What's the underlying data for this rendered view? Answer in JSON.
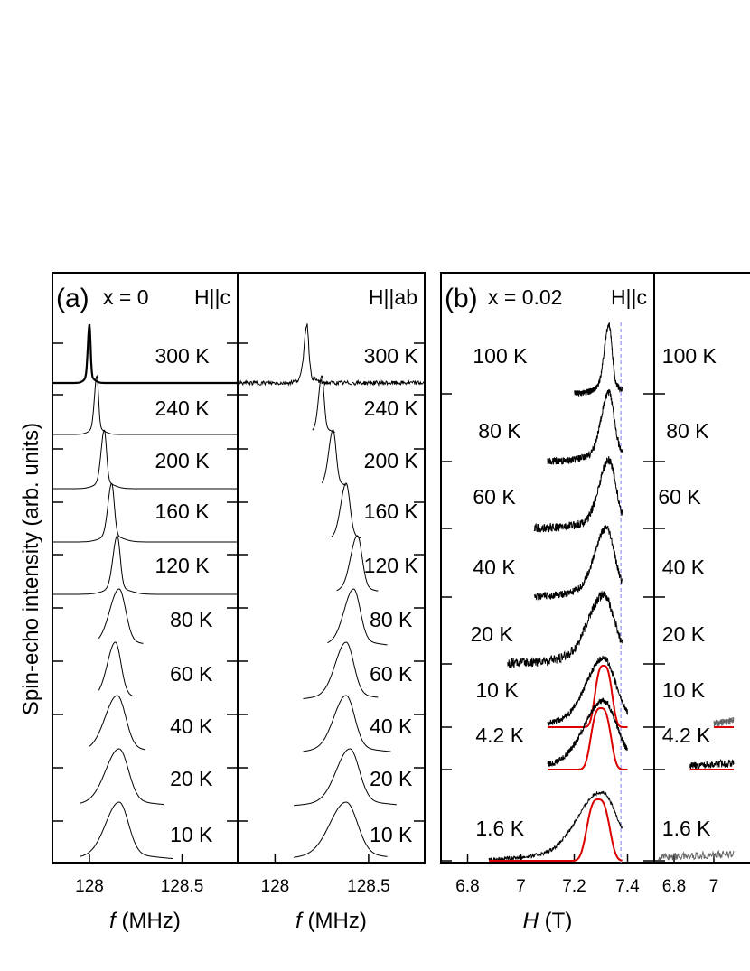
{
  "figure": {
    "ylabel": "Spin-echo intensity (arb. units)"
  },
  "chart_data": [
    {
      "type": "line",
      "panel": "a-left",
      "panel_label": "(a)",
      "composition": "x = 0",
      "field_orientation": "H||c",
      "xlabel_italic": "f",
      "xlabel_unit": "(MHz)",
      "xlim": [
        127.8,
        128.8
      ],
      "xticks": [
        128,
        128.5
      ],
      "xtick_labels": [
        "128",
        "128.5"
      ],
      "ylim": [
        0,
        11
      ],
      "series": [
        {
          "temperature": "300 K",
          "center": 128.0,
          "width": 0.006,
          "baseline": [
            127.8,
            128.8
          ],
          "noise": 0,
          "label_x": 128.5,
          "bold": true
        },
        {
          "temperature": "240 K",
          "center": 128.04,
          "width": 0.009,
          "baseline": [
            127.8,
            128.8
          ],
          "noise": 0,
          "label_x": 128.5
        },
        {
          "temperature": "200 K",
          "center": 128.08,
          "width": 0.012,
          "baseline": [
            127.8,
            128.8
          ],
          "noise": 0,
          "label_x": 128.5
        },
        {
          "temperature": "160 K",
          "center": 128.12,
          "width": 0.014,
          "baseline": [
            127.8,
            128.8
          ],
          "noise": 0,
          "label_x": 128.5
        },
        {
          "temperature": "120 K",
          "center": 128.15,
          "width": 0.016,
          "baseline": [
            127.8,
            128.8
          ],
          "noise": 0,
          "label_x": 128.5
        },
        {
          "temperature": "80 K",
          "center": 128.16,
          "width": 0.035,
          "baseline": [
            128.05,
            128.29
          ],
          "noise": 0,
          "label_x": 128.55
        },
        {
          "temperature": "60 K",
          "center": 128.14,
          "width": 0.03,
          "baseline": [
            128.05,
            128.23
          ],
          "noise": 0,
          "label_x": 128.55
        },
        {
          "temperature": "40 K",
          "center": 128.15,
          "width": 0.045,
          "baseline": [
            128.0,
            128.3
          ],
          "noise": 0,
          "label_x": 128.55
        },
        {
          "temperature": "20 K",
          "center": 128.16,
          "width": 0.05,
          "baseline": [
            127.95,
            128.4
          ],
          "noise": 0,
          "label_x": 128.55
        },
        {
          "temperature": "10 K",
          "center": 128.16,
          "width": 0.05,
          "baseline": [
            127.95,
            128.45
          ],
          "noise": 0,
          "label_x": 128.55
        }
      ]
    },
    {
      "type": "line",
      "panel": "a-right",
      "field_orientation": "H||ab",
      "xlabel_italic": "f",
      "xlabel_unit": "(MHz)",
      "xlim": [
        127.8,
        128.8
      ],
      "xticks": [
        128,
        128.5
      ],
      "xtick_labels": [
        "128",
        "128.5"
      ],
      "ylim": [
        0,
        11
      ],
      "series": [
        {
          "temperature": "300 K",
          "center": 128.17,
          "width": 0.01,
          "baseline": [
            127.8,
            128.8
          ],
          "noise": 0.04,
          "label_x": 128.62
        },
        {
          "temperature": "240 K",
          "center": 128.25,
          "width": 0.012,
          "baseline": [
            128.2,
            128.32
          ],
          "noise": 0,
          "label_x": 128.62
        },
        {
          "temperature": "200 K",
          "center": 128.31,
          "width": 0.016,
          "baseline": [
            128.25,
            128.38
          ],
          "noise": 0,
          "label_x": 128.62
        },
        {
          "temperature": "160 K",
          "center": 128.38,
          "width": 0.02,
          "baseline": [
            128.3,
            128.46
          ],
          "noise": 0,
          "label_x": 128.62
        },
        {
          "temperature": "120 K",
          "center": 128.44,
          "width": 0.025,
          "baseline": [
            128.33,
            128.55
          ],
          "noise": 0,
          "label_x": 128.62
        },
        {
          "temperature": "80 K",
          "center": 128.42,
          "width": 0.035,
          "baseline": [
            128.28,
            128.6
          ],
          "noise": 0,
          "label_x": 128.62
        },
        {
          "temperature": "60 K",
          "center": 128.38,
          "width": 0.04,
          "baseline": [
            128.15,
            128.55
          ],
          "noise": 0,
          "label_x": 128.62
        },
        {
          "temperature": "40 K",
          "center": 128.38,
          "width": 0.045,
          "baseline": [
            128.15,
            128.62
          ],
          "noise": 0,
          "label_x": 128.62
        },
        {
          "temperature": "20 K",
          "center": 128.4,
          "width": 0.05,
          "baseline": [
            128.1,
            128.65
          ],
          "noise": 0,
          "label_x": 128.62
        },
        {
          "temperature": "10 K",
          "center": 128.38,
          "width": 0.06,
          "baseline": [
            128.1,
            128.6
          ],
          "noise": 0,
          "label_x": 128.62
        }
      ]
    },
    {
      "type": "line",
      "panel": "b-left",
      "panel_label": "(b)",
      "composition": "x = 0.02",
      "field_orientation": "H||c",
      "xlabel_italic": "H",
      "xlabel_unit": "(T)",
      "xlim": [
        6.7,
        7.5
      ],
      "xticks": [
        6.8,
        7.0,
        7.2,
        7.4
      ],
      "xtick_labels": [
        "6.8",
        "7",
        "7.2",
        "7.4"
      ],
      "ylim": [
        0,
        8
      ],
      "reference_line_x": 7.375,
      "series": [
        {
          "temperature": "100 K",
          "center": 7.33,
          "width": 0.012,
          "baseline": [
            7.2,
            7.38
          ],
          "noise": 0.05,
          "label_x": 6.82
        },
        {
          "temperature": "80 K",
          "center": 7.33,
          "width": 0.02,
          "baseline": [
            7.1,
            7.38
          ],
          "noise": 0.06,
          "label_x": 6.84
        },
        {
          "temperature": "60 K",
          "center": 7.33,
          "width": 0.025,
          "baseline": [
            7.05,
            7.38
          ],
          "noise": 0.07,
          "label_x": 6.82
        },
        {
          "temperature": "40 K",
          "center": 7.32,
          "width": 0.03,
          "baseline": [
            7.05,
            7.38
          ],
          "noise": 0.06,
          "label_x": 6.82
        },
        {
          "temperature": "20 K",
          "center": 7.31,
          "width": 0.04,
          "baseline": [
            6.95,
            7.38
          ],
          "noise": 0.08,
          "label_x": 6.81
        },
        {
          "temperature": "10 K",
          "center": 7.31,
          "width": 0.045,
          "baseline": [
            7.1,
            7.4
          ],
          "noise": 0.05,
          "label_x": 6.83,
          "fit": {
            "center": 7.31,
            "width": 0.03,
            "range": [
              7.1,
              7.4
            ]
          }
        },
        {
          "temperature": "4.2 K",
          "center": 7.31,
          "width": 0.05,
          "baseline": [
            7.1,
            7.4
          ],
          "noise": 0.05,
          "label_x": 6.83,
          "fit": {
            "center": 7.3,
            "width": 0.035,
            "range": [
              7.1,
              7.4
            ]
          }
        },
        {
          "temperature": "1.6 K",
          "center": 7.3,
          "width": 0.06,
          "baseline": [
            6.88,
            7.38
          ],
          "noise": 0.03,
          "label_x": 6.83,
          "fit": {
            "center": 7.29,
            "width": 0.04,
            "range": [
              6.88,
              7.38
            ]
          }
        }
      ]
    },
    {
      "type": "line",
      "panel": "b-right",
      "xlim": [
        6.7,
        7.5
      ],
      "xticks": [
        6.8,
        7.0
      ],
      "xtick_labels": [
        "6.8",
        "7"
      ],
      "ylim": [
        0,
        8
      ],
      "series": [
        {
          "temperature": "100 K",
          "label_x": 6.74
        },
        {
          "temperature": "80 K",
          "label_x": 6.76
        },
        {
          "temperature": "60 K",
          "label_x": 6.72
        },
        {
          "temperature": "40 K",
          "label_x": 6.74
        },
        {
          "temperature": "20 K",
          "label_x": 6.74
        },
        {
          "temperature": "10 K",
          "label_x": 6.74,
          "partial": {
            "range": [
              7.0,
              7.1
            ],
            "fit": true
          }
        },
        {
          "temperature": "4.2 K",
          "label_x": 6.74,
          "partial": {
            "range": [
              6.88,
              7.1
            ],
            "fit": true
          }
        },
        {
          "temperature": "1.6 K",
          "label_x": 6.74,
          "partial": {
            "range": [
              6.72,
              7.1
            ],
            "fit": false
          }
        }
      ]
    }
  ]
}
